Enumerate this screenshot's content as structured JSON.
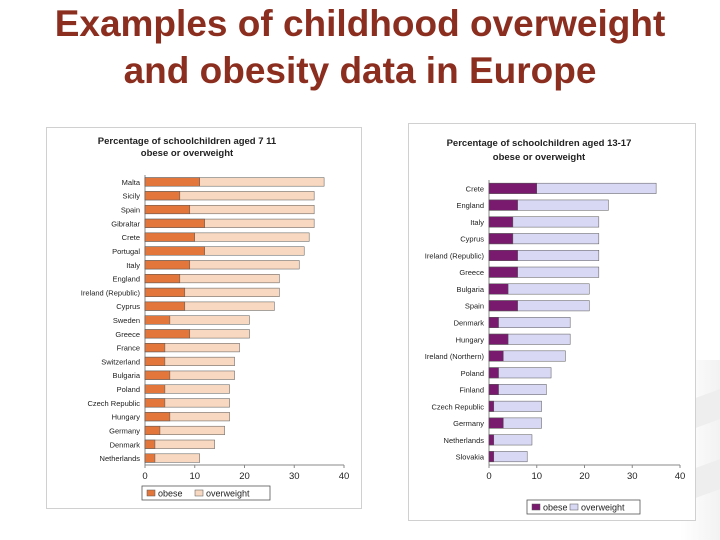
{
  "slide": {
    "title": "Examples of childhood overweight and obesity data in Europe"
  },
  "colors": {
    "title": "#8b2e1f",
    "obese_left": "#e2763b",
    "overweight_left": "#f8d8c0",
    "obese_right": "#7a1a6e",
    "overweight_right": "#d8d8f5"
  },
  "chart_data": [
    {
      "type": "bar",
      "orientation": "horizontal",
      "stacked": false,
      "overlay": true,
      "title": "Percentage of schoolchildren aged 7-11 obese or overweight",
      "title_lines": [
        "Percentage of schoolchildren aged 7 11",
        "obese or overweight"
      ],
      "categories": [
        "Malta",
        "Sicily",
        "Spain",
        "Gibraltar",
        "Crete",
        "Portugal",
        "Italy",
        "England",
        "Ireland (Republic)",
        "Cyprus",
        "Sweden",
        "Greece",
        "France",
        "Switzerland",
        "Bulgaria",
        "Poland",
        "Czech Republic",
        "Hungary",
        "Germany",
        "Denmark",
        "Netherlands"
      ],
      "series": [
        {
          "name": "obese",
          "values": [
            11,
            7,
            9,
            12,
            10,
            12,
            9,
            7,
            8,
            8,
            5,
            9,
            4,
            4,
            5,
            4,
            4,
            5,
            3,
            2,
            2
          ]
        },
        {
          "name": "overweight",
          "values": [
            36,
            34,
            34,
            34,
            33,
            32,
            31,
            27,
            27,
            26,
            21,
            21,
            19,
            18,
            18,
            17,
            17,
            17,
            16,
            14,
            11
          ]
        }
      ],
      "xlim": [
        0,
        40
      ],
      "xticks": [
        "0",
        "10",
        "20",
        "30",
        "40"
      ],
      "legend": [
        "obese",
        "overweight"
      ],
      "legend_position": "bottom"
    },
    {
      "type": "bar",
      "orientation": "horizontal",
      "stacked": false,
      "overlay": true,
      "title": "Percentage of schoolchildren aged 13-17 obese or overweight",
      "title_lines": [
        "Percentage of schoolchildren aged 13-17",
        "obese or overweight"
      ],
      "categories": [
        "Crete",
        "England",
        "Italy",
        "Cyprus",
        "Ireland (Republic)",
        "Greece",
        "Bulgaria",
        "Spain",
        "Denmark",
        "Hungary",
        "Ireland (Northern)",
        "Poland",
        "Finland",
        "Czech Republic",
        "Germany",
        "Netherlands",
        "Slovakia"
      ],
      "series": [
        {
          "name": "obese",
          "values": [
            10,
            6,
            5,
            5,
            6,
            6,
            4,
            6,
            2,
            4,
            3,
            2,
            2,
            1,
            3,
            1,
            1
          ]
        },
        {
          "name": "overweight",
          "values": [
            35,
            25,
            23,
            23,
            23,
            23,
            21,
            21,
            17,
            17,
            16,
            13,
            12,
            11,
            11,
            9,
            8
          ]
        }
      ],
      "xlim": [
        0,
        40
      ],
      "xticks": [
        "0",
        "10",
        "20",
        "30",
        "40"
      ],
      "legend": [
        "obese",
        "overweight"
      ],
      "legend_position": "bottom"
    }
  ]
}
